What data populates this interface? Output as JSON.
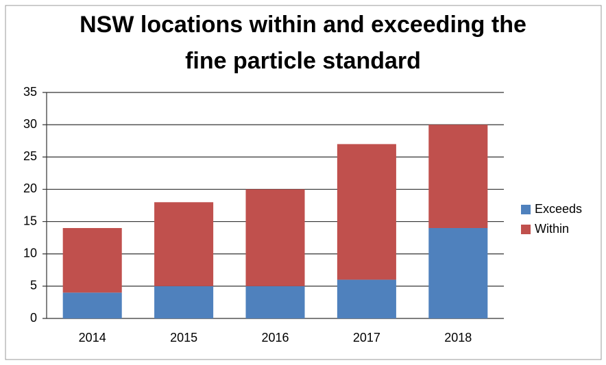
{
  "chart_data": {
    "type": "bar",
    "stacked": true,
    "title": "NSW locations within and exceeding the fine particle standard",
    "categories": [
      "2014",
      "2015",
      "2016",
      "2017",
      "2018"
    ],
    "series": [
      {
        "name": "Exceeds",
        "color": "#4f81bd",
        "values": [
          4,
          5,
          5,
          6,
          14
        ]
      },
      {
        "name": "Within",
        "color": "#c0504d",
        "values": [
          10,
          13,
          15,
          21,
          16
        ]
      }
    ],
    "ylim": [
      0,
      35
    ],
    "yticks": [
      0,
      5,
      10,
      15,
      20,
      25,
      30,
      35
    ],
    "grid": true,
    "legend": "right"
  }
}
